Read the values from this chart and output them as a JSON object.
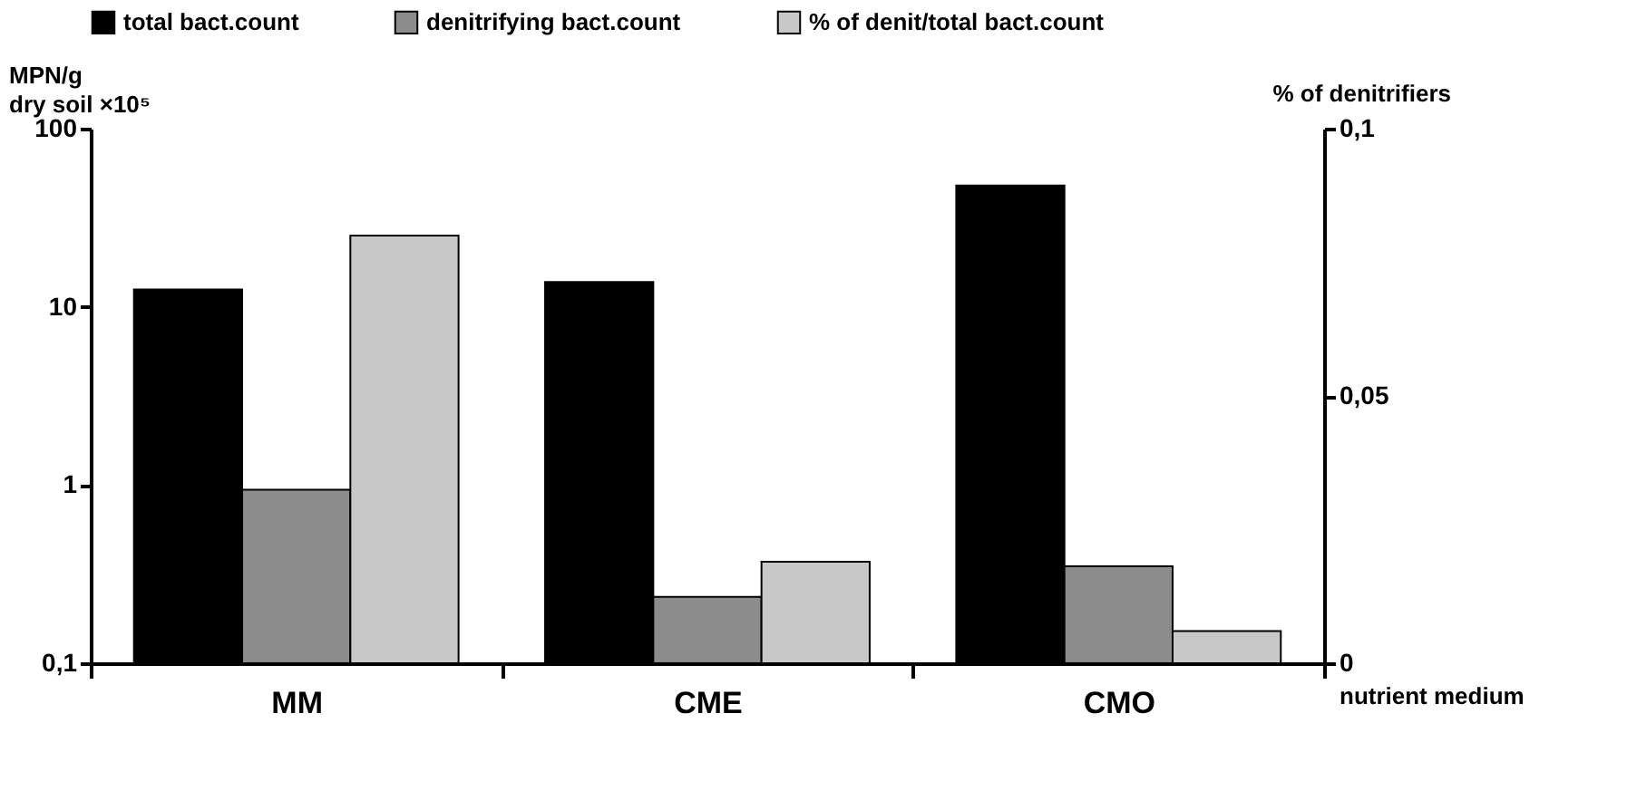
{
  "chart_data": {
    "type": "bar",
    "xlabel": "nutrient medium",
    "ylabel": "MPN/g\ndry soil ×10⁵",
    "y2label": "% of denitrifiers",
    "categories": [
      "MM",
      "CME",
      "CMO"
    ],
    "series": [
      {
        "name": "total bact.count",
        "color": "#000000",
        "values": [
          12.5,
          13.8,
          48
        ]
      },
      {
        "name": "denitrifying bact.count",
        "color": "#8c8c8c",
        "values": [
          0.94,
          0.236,
          0.35
        ]
      },
      {
        "name": "% of denit/total bact.count",
        "color": "#c8c8c8",
        "axis": "y2",
        "values": [
          0.08,
          0.019,
          0.006
        ]
      }
    ],
    "log": "y",
    "ylim": [
      0.1,
      100
    ],
    "yticks": [
      {
        "value": 0.1,
        "label": "0,1"
      },
      1,
      10,
      100
    ],
    "y2lim": [
      0,
      0.1
    ],
    "y2ticks": [
      0,
      {
        "value": 0.05,
        "label": "0,05"
      },
      {
        "value": 0.1,
        "label": "0,1"
      }
    ],
    "legend": "top"
  }
}
